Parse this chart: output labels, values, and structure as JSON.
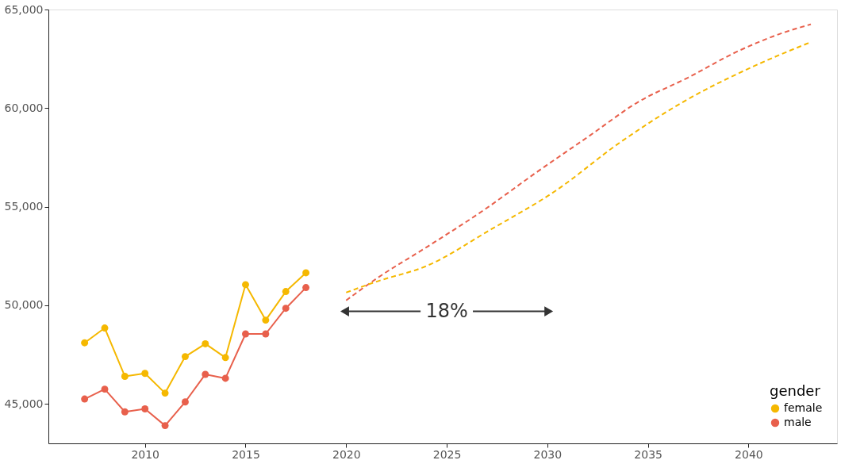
{
  "chart_data": {
    "type": "line",
    "series": [
      {
        "name": "female",
        "color": "#f5b800",
        "x": [
          2007,
          2008,
          2009,
          2010,
          2011,
          2012,
          2013,
          2014,
          2015,
          2016,
          2017,
          2018
        ],
        "values": [
          48100,
          48850,
          46400,
          46550,
          45550,
          47400,
          48050,
          47350,
          51050,
          49250,
          50700,
          51650
        ]
      },
      {
        "name": "male",
        "color": "#e8604c",
        "x": [
          2007,
          2008,
          2009,
          2010,
          2011,
          2012,
          2013,
          2014,
          2015,
          2016,
          2017,
          2018
        ],
        "values": [
          45250,
          45750,
          44600,
          44750,
          43900,
          45100,
          46500,
          46300,
          48550,
          48550,
          49850,
          50900
        ]
      },
      {
        "color": "#e8604c",
        "line_style": "dashed",
        "marker": "none",
        "x": [
          2020,
          2021.5,
          2024,
          2026.8,
          2029.4,
          2032.1,
          2034.5,
          2037,
          2039.4,
          2041.8,
          2043.1
        ],
        "values": [
          50250,
          51350,
          52950,
          54800,
          56700,
          58600,
          60300,
          61550,
          62850,
          63850,
          64250
        ]
      },
      {
        "color": "#f5b800",
        "line_style": "dashed",
        "marker": "none",
        "x": [
          2020,
          2021.5,
          2024,
          2027.2,
          2030.4,
          2033.6,
          2036.9,
          2040.1,
          2043.1
        ],
        "values": [
          50650,
          51200,
          52000,
          53850,
          55800,
          58250,
          60400,
          62050,
          63350
        ]
      }
    ],
    "marker": "circle",
    "line_style": "solid",
    "xlim": [
      2005.2,
      2044.4
    ],
    "xticks": [
      2010,
      2015,
      2020,
      2025,
      2030,
      2035,
      2040
    ],
    "ylim": [
      43000,
      65000
    ],
    "yticks": [
      {
        "value": 45000,
        "label": "45,000"
      },
      {
        "value": 50000,
        "label": "50,000"
      },
      {
        "value": 55000,
        "label": "55,000"
      },
      {
        "value": 60000,
        "label": "60,000"
      },
      {
        "value": 65000,
        "label": "65,000"
      }
    ],
    "legend_title": "gender",
    "legend": "bottom right",
    "grid": false,
    "annotations": [
      "18%"
    ]
  }
}
